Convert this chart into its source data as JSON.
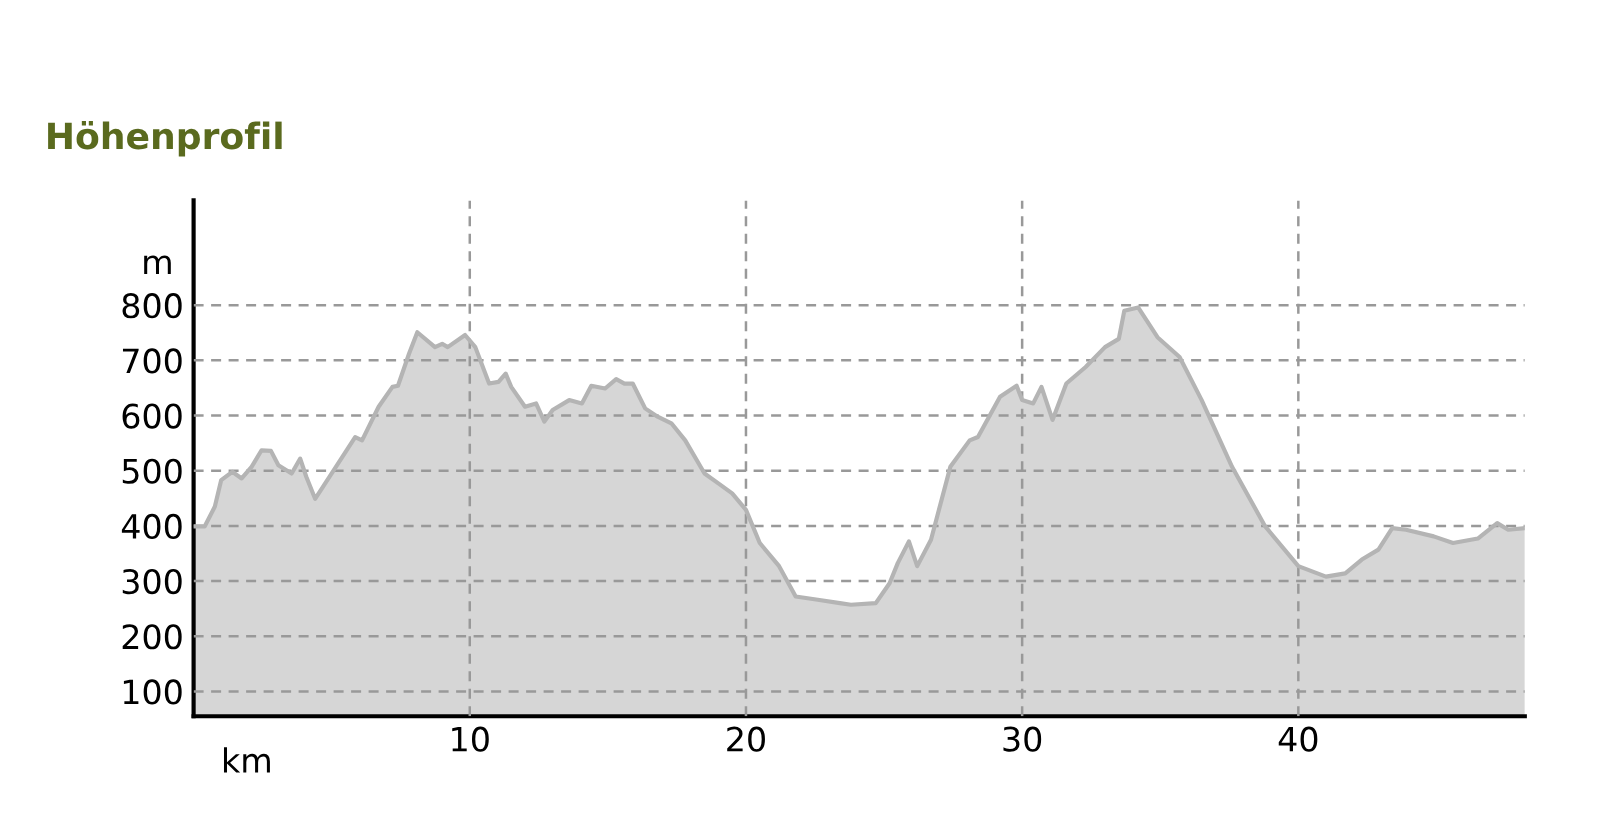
{
  "chart_data": {
    "type": "area",
    "title": "Höhenprofil",
    "xlabel": "km",
    "ylabel": "m",
    "x": [
      0,
      0.4,
      0.77,
      1.0,
      1.4,
      1.74,
      2.1,
      2.46,
      2.8,
      3.07,
      3.55,
      3.86,
      4.08,
      4.4,
      5.0,
      5.85,
      6.1,
      6.7,
      7.2,
      7.4,
      7.8,
      8.1,
      8.74,
      9.0,
      9.2,
      9.83,
      10.2,
      10.7,
      11.04,
      11.3,
      11.5,
      12.0,
      12.4,
      12.7,
      13.0,
      13.6,
      14.06,
      14.4,
      14.9,
      15.3,
      15.6,
      15.9,
      16.35,
      16.8,
      17.3,
      17.8,
      18.5,
      19.0,
      19.5,
      20.0,
      20.5,
      21.2,
      21.8,
      22.6,
      23.4,
      23.8,
      24.7,
      25.2,
      25.5,
      25.9,
      26.2,
      26.7,
      27.4,
      28.1,
      28.4,
      29.2,
      29.8,
      30.0,
      30.4,
      30.7,
      31.1,
      31.6,
      32.3,
      33.0,
      33.5,
      33.7,
      34.2,
      34.9,
      35.7,
      36.5,
      37.6,
      38.8,
      40.0,
      41.0,
      41.7,
      42.3,
      42.9,
      43.4,
      43.9,
      44.9,
      45.6,
      46.5,
      47.2,
      47.6,
      48.2
    ],
    "series": [
      {
        "color": "#b4b4b4",
        "values": [
          399,
          399,
          435,
          483,
          498,
          486,
          507,
          537,
          536,
          510,
          495,
          522,
          489,
          449,
          495,
          561,
          555,
          616,
          652,
          654,
          712,
          751,
          724,
          730,
          724,
          746,
          724,
          658,
          661,
          676,
          652,
          616,
          622,
          589,
          610,
          628,
          622,
          654,
          649,
          666,
          658,
          658,
          613,
          598,
          586,
          555,
          495,
          477,
          459,
          429,
          369,
          327,
          272,
          266,
          260,
          257,
          260,
          296,
          333,
          372,
          327,
          375,
          507,
          555,
          561,
          634,
          654,
          628,
          622,
          652,
          592,
          658,
          688,
          724,
          739,
          790,
          796,
          742,
          706,
          628,
          507,
          399,
          327,
          308,
          314,
          339,
          357,
          396,
          393,
          381,
          369,
          377,
          405,
          393,
          396
        ]
      }
    ],
    "xlim": [
      0,
      48.2
    ],
    "ylim": [
      55,
      990
    ],
    "xticks": [
      10,
      20,
      30,
      40
    ],
    "yticks": [
      100,
      200,
      300,
      400,
      500,
      600,
      700,
      800
    ],
    "grid": true,
    "line_style": "solid",
    "marker": "none"
  }
}
